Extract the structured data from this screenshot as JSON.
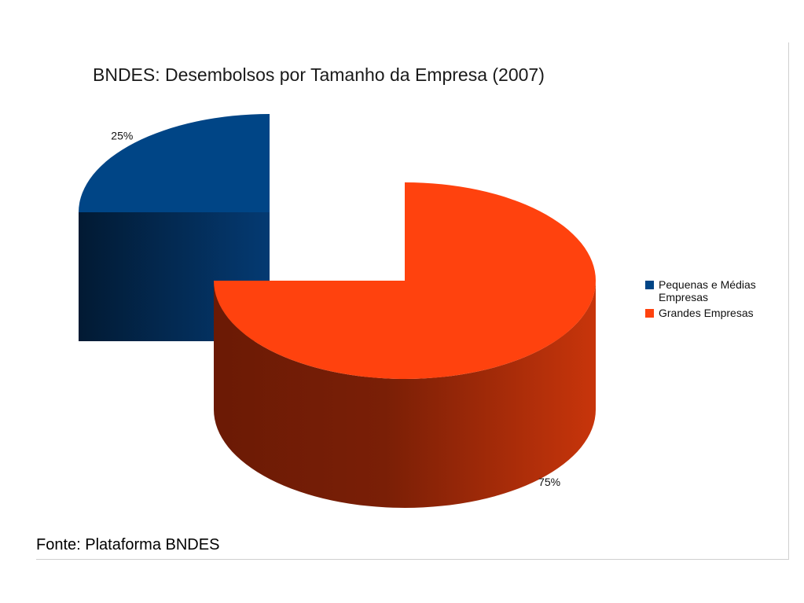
{
  "source_note": "Fonte: Plataforma BNDES",
  "chart_data": {
    "type": "pie",
    "title": "BNDES: Desembolsos por Tamanho da Empresa (2007)",
    "categories": [
      "Pequenas e Médias Empresas",
      "Grandes Empresas"
    ],
    "values": [
      25,
      75
    ],
    "data_labels": [
      "25%",
      "75%"
    ],
    "colors": [
      "#004586",
      "#ff420e"
    ],
    "exploded": true,
    "three_d": true,
    "legend_position": "right"
  }
}
